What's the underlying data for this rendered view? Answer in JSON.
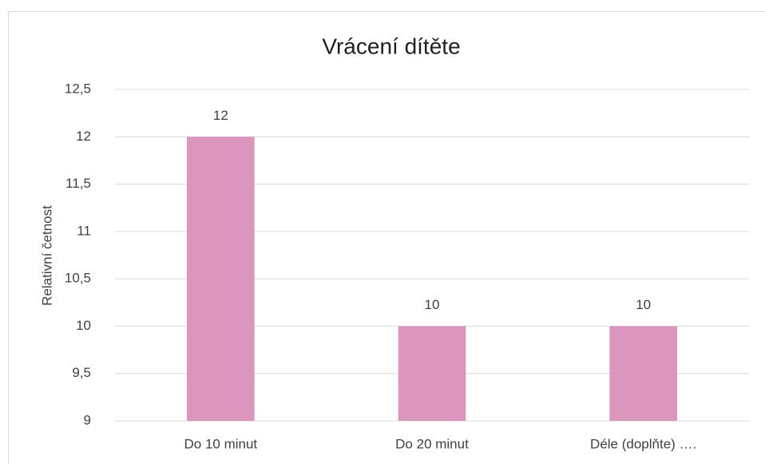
{
  "chart_data": {
    "type": "bar",
    "title": "Vrácení dítěte",
    "ylabel": "Relativní četnost",
    "categories": [
      "Do 10 minut",
      "Do 20 minut",
      "Déle (doplňte) …."
    ],
    "values": [
      12,
      10,
      10
    ],
    "color": "#da96bc",
    "ylim": [
      9,
      12.5
    ],
    "yticks": [
      9,
      {
        "value": 9.5,
        "label": "9,5"
      },
      10,
      {
        "value": 10.5,
        "label": "10,5"
      },
      11,
      {
        "value": 11.5,
        "label": "11,5"
      },
      12,
      {
        "value": 12.5,
        "label": "12,5"
      }
    ],
    "grid": true
  }
}
